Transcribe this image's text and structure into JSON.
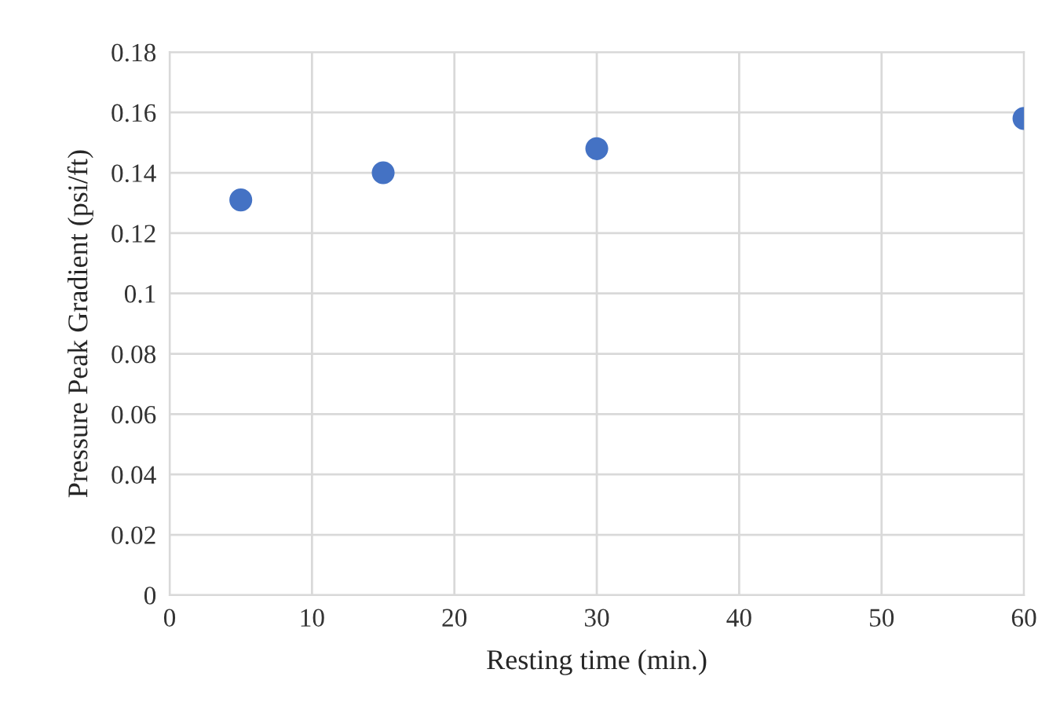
{
  "chart_data": {
    "type": "scatter",
    "xlabel": "Resting time (min.)",
    "ylabel": "Pressure Peak Gradient (psi/ft)",
    "x": [
      5,
      15,
      30,
      60
    ],
    "series": [
      {
        "color": "#4472c4",
        "values": [
          0.131,
          0.14,
          0.148,
          0.158
        ]
      }
    ],
    "xlim": [
      0,
      60
    ],
    "xticks": [
      0,
      10,
      20,
      30,
      40,
      50,
      60
    ],
    "ylim": [
      0,
      0.18
    ],
    "yticks": [
      {
        "value": 0,
        "label": "0"
      },
      0.02,
      0.04,
      0.06,
      0.08,
      {
        "value": 0.1,
        "label": "0.1"
      },
      0.12,
      0.14,
      0.16,
      0.18
    ],
    "grid": true,
    "marker": "circle"
  }
}
